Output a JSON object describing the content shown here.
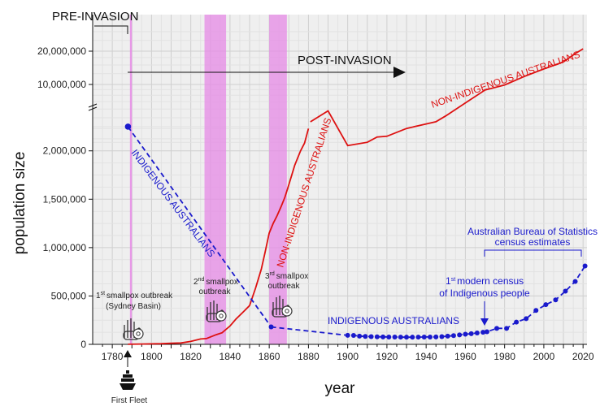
{
  "chart_data": {
    "type": "line",
    "xlabel": "year",
    "ylabel": "population size",
    "xlim": [
      1770,
      2022
    ],
    "x_ticks": [
      1780,
      1800,
      1820,
      1840,
      1860,
      1880,
      1900,
      1920,
      1940,
      1960,
      1980,
      2000,
      2020
    ],
    "y_ticks_linear": [
      0,
      500000,
      1000000,
      1500000,
      2000000
    ],
    "y_tick_labels_linear": [
      "0",
      "500,000",
      "1,000,000",
      "1,500,000",
      "2,000,000"
    ],
    "y_ticks_log": [
      10000000,
      20000000
    ],
    "y_tick_labels_log": [
      "10,000,000",
      "20,000,000"
    ],
    "grid": true,
    "smallpox_bands": [
      {
        "name": "1st smallpox outbreak",
        "start": 1789,
        "end": 1790
      },
      {
        "name": "2nd smallpox outbreak",
        "start": 1827,
        "end": 1838
      },
      {
        "name": "3rd smallpox outbreak",
        "start": 1860,
        "end": 1869
      }
    ],
    "series": [
      {
        "name": "NON-INDIGENOUS AUSTRALIANS",
        "color": "#dd1111",
        "style": "solid",
        "x": [
          1788,
          1795,
          1800,
          1805,
          1810,
          1815,
          1820,
          1825,
          1828,
          1833,
          1836,
          1840,
          1843,
          1846,
          1850,
          1853,
          1856,
          1858,
          1860,
          1862,
          1864,
          1866,
          1868,
          1870,
          1873,
          1876,
          1878,
          1880
        ],
        "y": [
          1000,
          3500,
          5000,
          7000,
          11000,
          14000,
          30000,
          55000,
          60000,
          100000,
          120000,
          190000,
          260000,
          320000,
          400000,
          580000,
          780000,
          960000,
          1150000,
          1250000,
          1330000,
          1420000,
          1520000,
          1650000,
          1850000,
          2000000,
          2080000,
          2230000
        ]
      },
      {
        "name": "NON-INDIGENOUS AUSTRALIANS (log section)",
        "color": "#dd1111",
        "style": "solid",
        "x": [
          1881,
          1890,
          1900,
          1910,
          1915,
          1920,
          1930,
          1940,
          1945,
          1950,
          1960,
          1970,
          1980,
          1990,
          2000,
          2010,
          2016,
          2020
        ],
        "y": [
          2300000,
          2600000,
          2800000,
          3000000,
          3350000,
          3400000,
          4000000,
          4400000,
          4600000,
          5200000,
          6800000,
          8900000,
          9900000,
          11800000,
          13800000,
          16000000,
          19000000,
          21000000
        ]
      },
      {
        "name": "INDIGENOUS AUSTRALIANS",
        "color": "#1a1acc",
        "style": "dashed",
        "x": [
          1788,
          1861
        ],
        "y": [
          2250000,
          180000
        ]
      },
      {
        "name": "INDIGENOUS AUSTRALIANS (estimates)",
        "color": "#1a1acc",
        "style": "dashed-points",
        "x": [
          1861,
          1900,
          1903,
          1906,
          1909,
          1912,
          1915,
          1918,
          1921,
          1924,
          1927,
          1930,
          1933,
          1936,
          1939,
          1942,
          1945,
          1948,
          1951,
          1954,
          1957,
          1960,
          1963,
          1966,
          1969,
          1971,
          1976,
          1981,
          1986,
          1991,
          1996,
          2001,
          2006,
          2011,
          2016,
          2021
        ],
        "y": [
          180000,
          93000,
          92000,
          85000,
          82000,
          80000,
          78000,
          77000,
          76000,
          76000,
          75000,
          74000,
          74000,
          75000,
          76000,
          76000,
          77000,
          80000,
          85000,
          90000,
          98000,
          105000,
          110000,
          118000,
          125000,
          130000,
          165000,
          165000,
          230000,
          265000,
          350000,
          410000,
          460000,
          550000,
          650000,
          810000
        ]
      }
    ]
  },
  "annotations": {
    "pre_invasion": "PRE-INVASION",
    "post_invasion": "POST-INVASION",
    "indigenous_diag_label": "INDIGENOUS AUSTRALIANS",
    "indigenous_flat_label": "INDIGENOUS AUSTRALIANS",
    "non_indigenous_steep_label": "NON-INDIGENOUS AUSTRALIANS",
    "non_indigenous_upper_label": "NON-INDIGENOUS AUSTRALIANS",
    "smallpox1_sup": "st",
    "smallpox1_line1_pre": "1",
    "smallpox1_line1_post": "smallpox outbreak",
    "smallpox1_line2": "(Sydney Basin)",
    "smallpox2_sup": "nd",
    "smallpox2_line1_pre": "2",
    "smallpox2_line1_post": "smallpox",
    "smallpox2_line2": "outbreak",
    "smallpox3_sup": "rd",
    "smallpox3_line1_pre": "3",
    "smallpox3_line1_post": "smallpox",
    "smallpox3_line2": "outbreak",
    "census_line1_pre": "1",
    "census_sup": "st",
    "census_line1_post": "modern census",
    "census_line2": "of Indigenous people",
    "abs_line1": "Australian Bureau of Statistics",
    "abs_line2": "census estimates",
    "first_fleet": "First Fleet"
  }
}
